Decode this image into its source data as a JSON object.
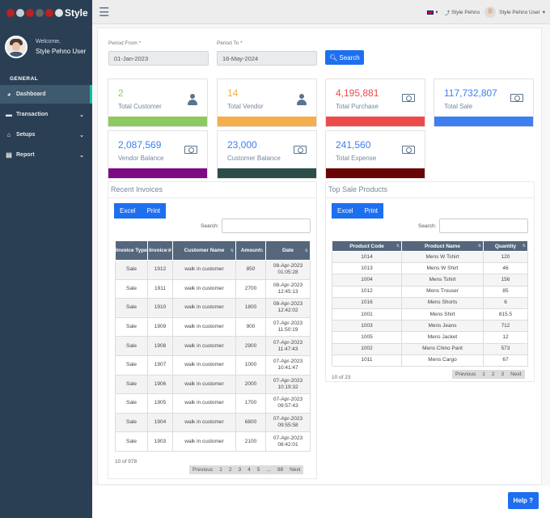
{
  "app": {
    "brand": "Style",
    "welcome": "Welcome,",
    "user_name": "Style Pehno User"
  },
  "sidebar": {
    "section": "GENERAL",
    "items": [
      {
        "label": "Dashboard",
        "icon": "dashboard-icon"
      },
      {
        "label": "Transaction",
        "icon": "transaction-icon"
      },
      {
        "label": "Setups",
        "icon": "setups-icon"
      },
      {
        "label": "Report",
        "icon": "report-icon"
      }
    ]
  },
  "topbar": {
    "lang": "▾",
    "store_link": "Style Pehno",
    "user": "Style Pehno User"
  },
  "filters": {
    "from_label": "Period From *",
    "from_value": "01-Jan-2023",
    "to_label": "Period To *",
    "to_value": "16-May-2024",
    "search_label": "Search"
  },
  "tiles": [
    {
      "value": "2",
      "label": "Total Customer",
      "color": "#8dc961"
    },
    {
      "value": "14",
      "label": "Total Vendor",
      "color": "#f4ae4b"
    },
    {
      "value": "4,195,881",
      "label": "Total Purchase",
      "color": "#ed4b4b"
    },
    {
      "value": "117,732,807",
      "label": "Total Sale",
      "color": "#3d7ff0"
    },
    {
      "value": "2,087,569",
      "label": "Vendor Balance",
      "color": "#7e0a84"
    },
    {
      "value": "23,000",
      "label": "Customer Balance",
      "color": "#2c4d4a"
    },
    {
      "value": "241,560",
      "label": "Total Expense",
      "color": "#6a0505"
    }
  ],
  "recent_invoices": {
    "title": "Recent Invoices",
    "excel": "Excel",
    "print": "Print",
    "search_label": "Search:",
    "columns": [
      "Invoice Type",
      "Invoice #",
      "Customer Name",
      "Amount",
      "Date"
    ],
    "rows": [
      [
        "Sale",
        "1912",
        "walk in customer",
        "850",
        "08-Apr-2023 01:05:28"
      ],
      [
        "Sale",
        "1911",
        "walk in customer",
        "2700",
        "08-Apr-2023 12:45:13"
      ],
      [
        "Sale",
        "1910",
        "walk in customer",
        "1800",
        "08-Apr-2023 12:42:02"
      ],
      [
        "Sale",
        "1909",
        "walk in customer",
        "900",
        "07-Apr-2023 11:50:19"
      ],
      [
        "Sale",
        "1908",
        "walk in customer",
        "2900",
        "07-Apr-2023 11:47:43"
      ],
      [
        "Sale",
        "1907",
        "walk in customer",
        "1000",
        "07-Apr-2023 10:41:47"
      ],
      [
        "Sale",
        "1906",
        "walk in customer",
        "2000",
        "07-Apr-2023 10:19:32"
      ],
      [
        "Sale",
        "1905",
        "walk in customer",
        "1700",
        "07-Apr-2023 09:57:43"
      ],
      [
        "Sale",
        "1904",
        "walk in customer",
        "6800",
        "07-Apr-2023 09:55:58"
      ],
      [
        "Sale",
        "1903",
        "walk in customer",
        "2100",
        "07-Apr-2023 08:42:01"
      ]
    ],
    "info": "10 of 978",
    "pager": [
      "Previous",
      "1",
      "2",
      "3",
      "4",
      "5",
      "...",
      "98",
      "Next"
    ]
  },
  "top_sale": {
    "title": "Top Sale Products",
    "excel": "Excel",
    "print": "Print",
    "search_label": "Search:",
    "columns": [
      "Product Code",
      "Product Name",
      "Quantity"
    ],
    "rows": [
      [
        "1014",
        "Mens W Tshirt",
        "120"
      ],
      [
        "1013",
        "Mens W Shirt",
        "46"
      ],
      [
        "1004",
        "Mens Tshirt",
        "156"
      ],
      [
        "1012",
        "Mens Trouser",
        "85"
      ],
      [
        "1016",
        "Mens Shorts",
        "6"
      ],
      [
        "1001",
        "Mens Shirt",
        "815.5"
      ],
      [
        "1003",
        "Mens Jeans",
        "712"
      ],
      [
        "1005",
        "Mens Jacket",
        "12"
      ],
      [
        "1002",
        "Mens Chino Pant",
        "573"
      ],
      [
        "1011",
        "Mens Cargo",
        "67"
      ]
    ],
    "info": "10 of 23",
    "pager": [
      "Previous",
      "1",
      "2",
      "3",
      "Next"
    ]
  },
  "help_label": "Help ?"
}
